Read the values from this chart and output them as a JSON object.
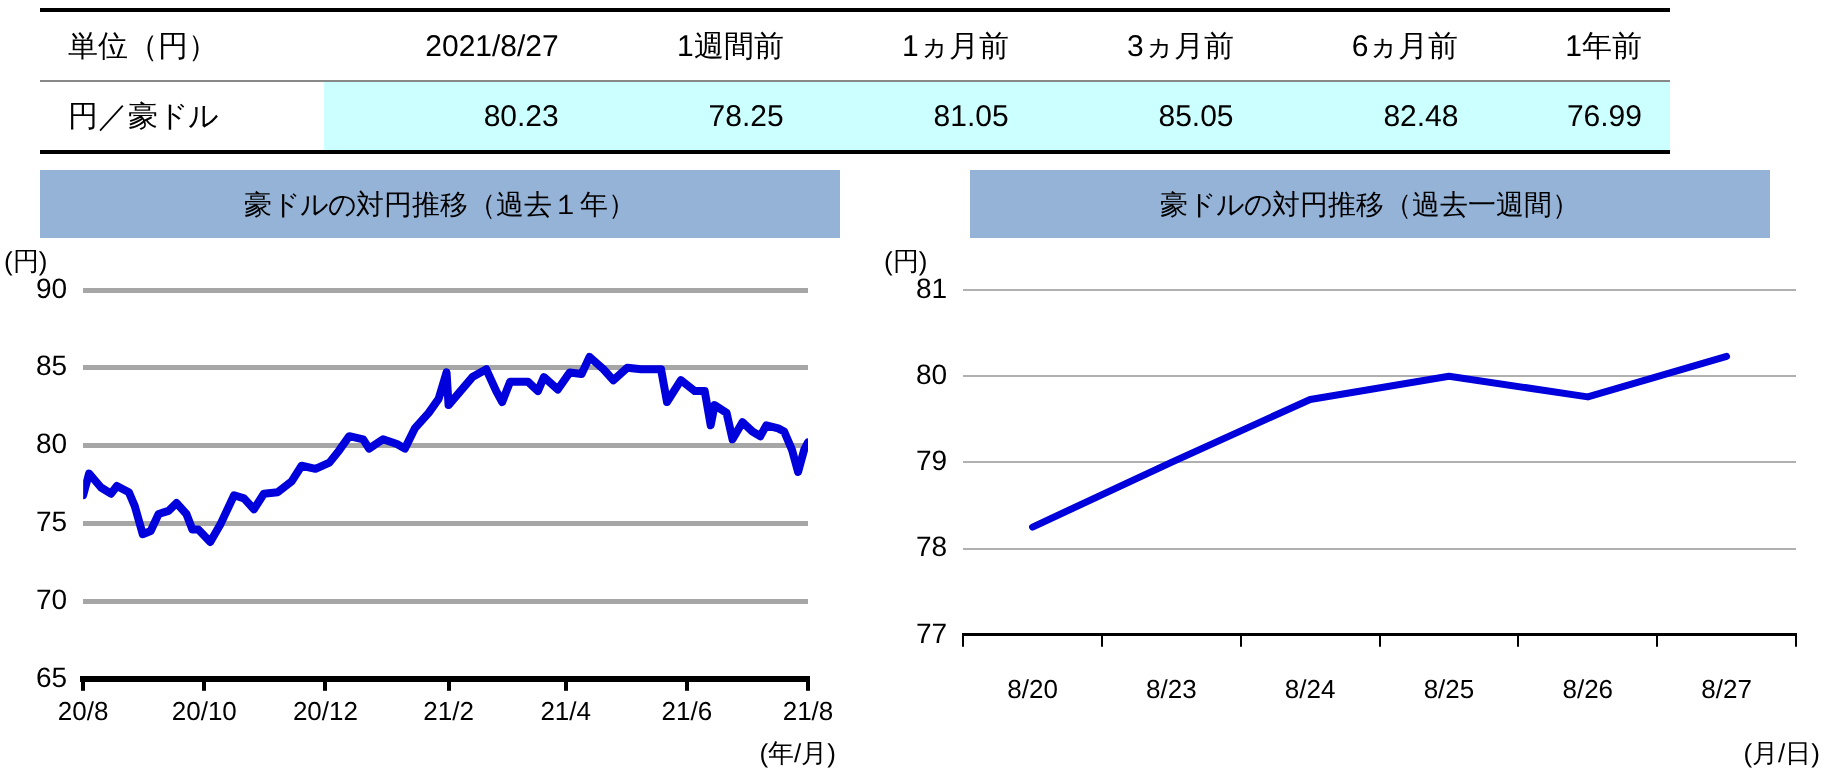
{
  "chart_data": [
    {
      "type": "other",
      "title": "単位（円）",
      "ylabel": "円／豪ドル",
      "categories": [
        "2021/8/27",
        "1週間前",
        "1ヵ月前",
        "3ヵ月前",
        "6ヵ月前",
        "1年前"
      ],
      "values": [
        80.23,
        78.25,
        81.05,
        85.05,
        82.48,
        76.99
      ],
      "data_labels": true
    },
    {
      "type": "line",
      "title": "豪ドルの対円推移（過去１年）",
      "ylabel": "(円)",
      "xlabel": "(年/月)",
      "grid": "y",
      "legend": false,
      "xlim": [
        "2020-08-27",
        "2021-08-27"
      ],
      "xticks": [
        {
          "value": "2020-08-27",
          "label": "20/8"
        },
        {
          "value": "2020-10-27",
          "label": "20/10"
        },
        {
          "value": "2020-12-27",
          "label": "20/12"
        },
        {
          "value": "2021-02-27",
          "label": "21/2"
        },
        {
          "value": "2021-04-27",
          "label": "21/4"
        },
        {
          "value": "2021-06-27",
          "label": "21/6"
        },
        {
          "value": "2021-08-27",
          "label": "21/8"
        }
      ],
      "ylim": [
        65,
        90
      ],
      "yticks": [
        65,
        70,
        75,
        80,
        85,
        90
      ],
      "series": [
        {
          "color": "#0000dd",
          "x": [
            "2020-08-27",
            "2020-08-30",
            "2020-09-05",
            "2020-09-10",
            "2020-09-13",
            "2020-09-19",
            "2020-09-22",
            "2020-09-26",
            "2020-09-30",
            "2020-10-04",
            "2020-10-09",
            "2020-10-13",
            "2020-10-18",
            "2020-10-21",
            "2020-10-24",
            "2020-10-30",
            "2020-11-04",
            "2020-11-11",
            "2020-11-16",
            "2020-11-21",
            "2020-11-26",
            "2020-12-03",
            "2020-12-10",
            "2020-12-15",
            "2020-12-22",
            "2020-12-29",
            "2021-01-03",
            "2021-01-08",
            "2021-01-15",
            "2021-01-18",
            "2021-01-25",
            "2021-02-01",
            "2021-02-05",
            "2021-02-10",
            "2021-02-17",
            "2021-02-22",
            "2021-02-26",
            "2021-02-27",
            "2021-03-05",
            "2021-03-11",
            "2021-03-18",
            "2021-03-23",
            "2021-03-26",
            "2021-03-30",
            "2021-04-08",
            "2021-04-13",
            "2021-04-16",
            "2021-04-23",
            "2021-04-29",
            "2021-05-05",
            "2021-05-09",
            "2021-05-16",
            "2021-05-21",
            "2021-05-28",
            "2021-06-04",
            "2021-06-14",
            "2021-06-17",
            "2021-06-24",
            "2021-07-01",
            "2021-07-06",
            "2021-07-09",
            "2021-07-11",
            "2021-07-17",
            "2021-07-20",
            "2021-07-25",
            "2021-07-30",
            "2021-08-03",
            "2021-08-06",
            "2021-08-12",
            "2021-08-15",
            "2021-08-19",
            "2021-08-22",
            "2021-08-25",
            "2021-08-27"
          ],
          "values": [
            76.8,
            78.2,
            77.3,
            76.9,
            77.4,
            77.0,
            76.1,
            74.3,
            74.5,
            75.6,
            75.8,
            76.3,
            75.6,
            74.6,
            74.6,
            73.8,
            74.9,
            76.8,
            76.6,
            75.9,
            76.9,
            77.0,
            77.7,
            78.7,
            78.5,
            78.9,
            79.7,
            80.6,
            80.4,
            79.8,
            80.4,
            80.1,
            79.8,
            81.1,
            82.1,
            83.0,
            84.7,
            82.6,
            83.5,
            84.4,
            84.9,
            83.5,
            82.8,
            84.1,
            84.1,
            83.5,
            84.4,
            83.6,
            84.7,
            84.6,
            85.7,
            84.9,
            84.2,
            85.0,
            84.9,
            84.9,
            82.8,
            84.2,
            83.5,
            83.5,
            81.3,
            82.6,
            82.1,
            80.4,
            81.5,
            80.9,
            80.6,
            81.3,
            81.1,
            80.9,
            79.7,
            78.3,
            79.7,
            80.2
          ]
        }
      ]
    },
    {
      "type": "line",
      "title": "豪ドルの対円推移（過去一週間）",
      "ylabel": "(円)",
      "xlabel": "(月/日)",
      "grid": "y",
      "legend": false,
      "categories": [
        "8/20",
        "8/23",
        "8/24",
        "8/25",
        "8/26",
        "8/27"
      ],
      "ylim": [
        77,
        81
      ],
      "yticks": [
        77,
        78,
        79,
        80,
        81
      ],
      "series": [
        {
          "color": "#0000dd",
          "values": [
            78.25,
            79.0,
            79.73,
            80.0,
            79.76,
            80.23
          ]
        }
      ]
    }
  ]
}
